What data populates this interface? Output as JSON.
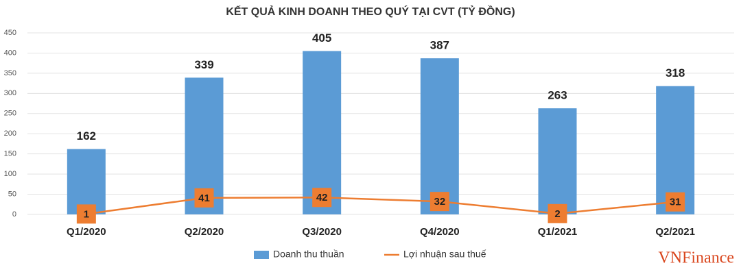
{
  "chart_data": {
    "type": "bar",
    "title": "KẾT QUẢ KINH DOANH THEO QUÝ TẠI CVT (TỶ ĐỒNG)",
    "categories": [
      "Q1/2020",
      "Q2/2020",
      "Q3/2020",
      "Q4/2020",
      "Q1/2021",
      "Q2/2021"
    ],
    "series": [
      {
        "name": "Doanh thu thuần",
        "type": "bar",
        "color": "#5b9bd5",
        "values": [
          162,
          339,
          405,
          387,
          263,
          318
        ]
      },
      {
        "name": "Lợi nhuận sau thuế",
        "type": "line",
        "color": "#ed7d31",
        "values": [
          1,
          41,
          42,
          32,
          2,
          31
        ]
      }
    ],
    "ylim": [
      0,
      450
    ],
    "yticks": [
      0,
      50,
      100,
      150,
      200,
      250,
      300,
      350,
      400,
      450
    ],
    "grid": true,
    "legend": "bottom"
  },
  "watermark": "VNFinance"
}
